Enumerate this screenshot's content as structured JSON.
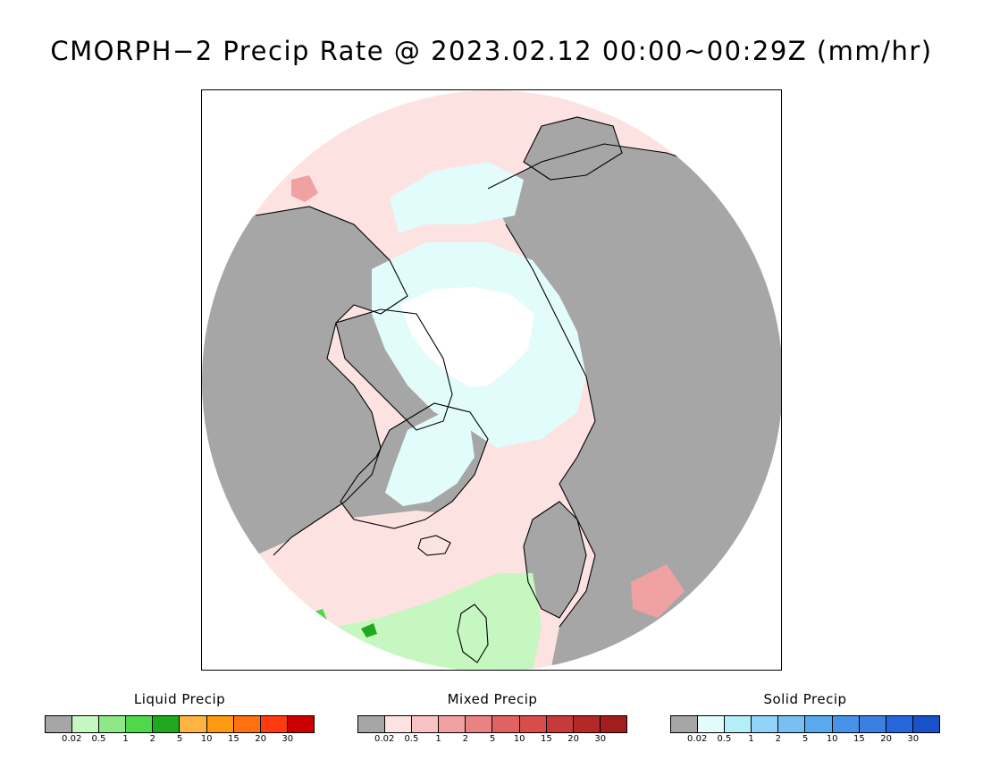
{
  "title": "CMORPH−2 Precip Rate @ 2023.02.12 00:00~00:29Z (mm/hr)",
  "legends": [
    {
      "title": "Liquid Precip",
      "colors": [
        "#a6a6a6",
        "#c6f7c0",
        "#8ee887",
        "#4fd84a",
        "#20a81e",
        "#ffb340",
        "#ff9a10",
        "#ff7010",
        "#ff3a10",
        "#cc0000"
      ],
      "ticks": [
        "0.02",
        "0.5",
        "1",
        "2",
        "5",
        "10",
        "15",
        "20",
        "30"
      ]
    },
    {
      "title": "Mixed Precip",
      "colors": [
        "#a6a6a6",
        "#fde2e2",
        "#f9c3c3",
        "#f0a1a1",
        "#e98282",
        "#e06262",
        "#d84c4c",
        "#c73a3a",
        "#b42828",
        "#a21e1e"
      ],
      "ticks": [
        "0.02",
        "0.5",
        "1",
        "2",
        "5",
        "10",
        "15",
        "20",
        "30"
      ]
    },
    {
      "title": "Solid Precip",
      "colors": [
        "#a6a6a6",
        "#e2fcfc",
        "#b4eef9",
        "#90d2f8",
        "#78bff2",
        "#5aa9ee",
        "#4793ea",
        "#3a80e2",
        "#2766d9",
        "#1a50c8"
      ],
      "ticks": [
        "0.02",
        "0.5",
        "1",
        "2",
        "5",
        "10",
        "15",
        "20",
        "30"
      ]
    }
  ],
  "map": {
    "colors": {
      "no_precip": "#a6a6a6",
      "mixed_light": "#fde2e2",
      "mixed_moderate": "#f0a1a1",
      "mixed_heavy": "#d84c4c",
      "solid_light": "#e2fcfc",
      "liquid_light": "#c6f7c0",
      "liquid_moderate": "#4fd84a",
      "liquid_heavy": "#20a81e",
      "no_data": "#ffffff",
      "coastline": "#000000"
    }
  }
}
